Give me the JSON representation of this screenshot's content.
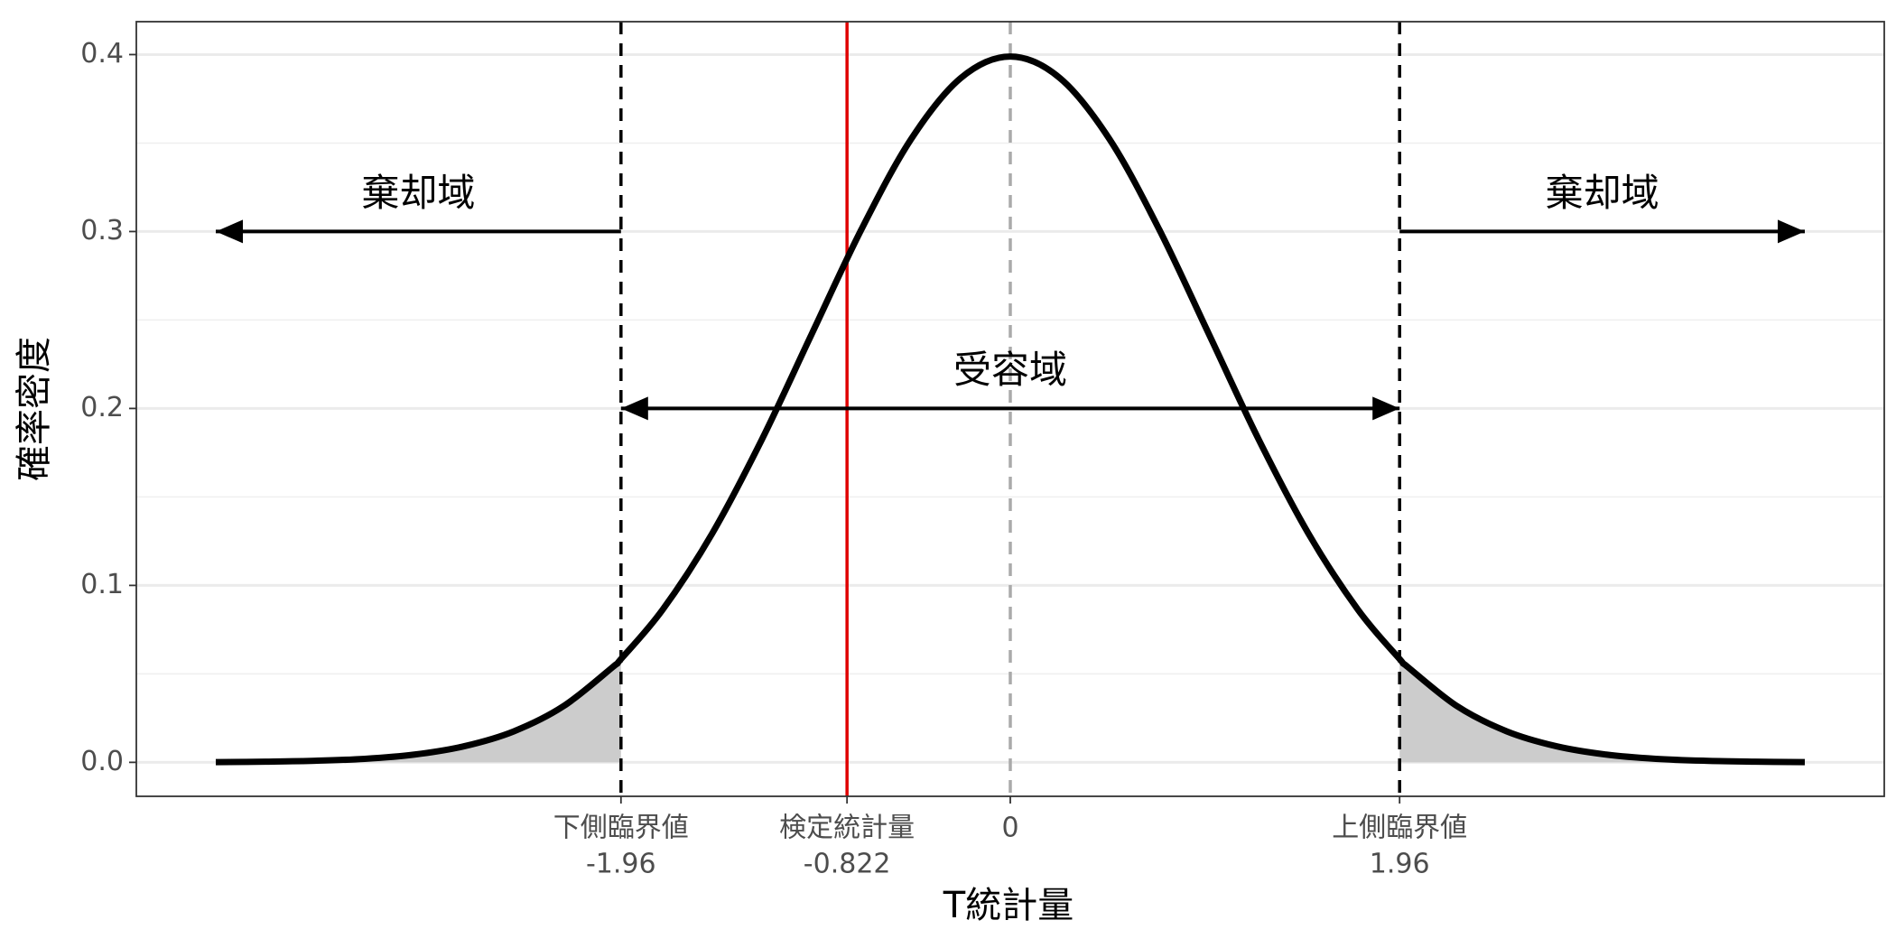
{
  "chart_data": {
    "type": "line",
    "x_label": "T統計量",
    "y_label": "確率密度",
    "x": [
      -4,
      -3.75,
      -3.5,
      -3.25,
      -3,
      -2.75,
      -2.5,
      -2.25,
      -2,
      -1.96,
      -1.75,
      -1.5,
      -1.25,
      -1,
      -0.75,
      -0.5,
      -0.25,
      0,
      0.25,
      0.5,
      0.75,
      1,
      1.25,
      1.5,
      1.75,
      1.96,
      2,
      2.25,
      2.5,
      2.75,
      3,
      3.25,
      3.5,
      3.75,
      4
    ],
    "values": [
      0.0001,
      0.0004,
      0.0009,
      0.002,
      0.0044,
      0.0091,
      0.0175,
      0.0317,
      0.054,
      0.0584,
      0.0863,
      0.1295,
      0.1826,
      0.242,
      0.3011,
      0.3521,
      0.3867,
      0.3989,
      0.3867,
      0.3521,
      0.3011,
      0.242,
      0.1826,
      0.1295,
      0.0863,
      0.0584,
      0.054,
      0.0317,
      0.0175,
      0.0091,
      0.0044,
      0.002,
      0.0009,
      0.0004,
      0.0001
    ],
    "color": "#000000",
    "shade_color": "#cccccc",
    "xlim": [
      -4.4,
      4.4
    ],
    "ylim": [
      -0.0192,
      0.4186
    ],
    "xticks": [
      {
        "value": -1.96,
        "label": [
          "下側臨界値",
          "-1.96"
        ],
        "line_color": "#000000",
        "line_style": "dashed"
      },
      {
        "value": -0.822,
        "label": [
          "検定統計量",
          "-0.822"
        ],
        "line_color": "#e00000",
        "line_style": "solid"
      },
      {
        "value": 0,
        "label": [
          "0"
        ],
        "line_color": "#aaaaaa",
        "line_style": "dashed"
      },
      {
        "value": 1.96,
        "label": [
          "上側臨界値",
          "1.96"
        ],
        "line_color": "#000000",
        "line_style": "dashed"
      }
    ],
    "yticks": [
      {
        "value": 0,
        "label": "0.0"
      },
      0.1,
      0.2,
      0.3,
      0.4
    ],
    "minor_yticks": [
      0.05,
      0.15,
      0.25,
      0.35
    ],
    "grid": true,
    "annotations": [
      {
        "text": "棄却域",
        "x": [
          -1.96,
          -4
        ],
        "y": 0.3
      },
      {
        "text": "棄却域",
        "x": [
          1.96,
          4
        ],
        "y": 0.3
      },
      {
        "text": "受容域",
        "x": [
          -1.96,
          1.96
        ],
        "y": 0.2,
        "both_ends": true
      }
    ]
  }
}
